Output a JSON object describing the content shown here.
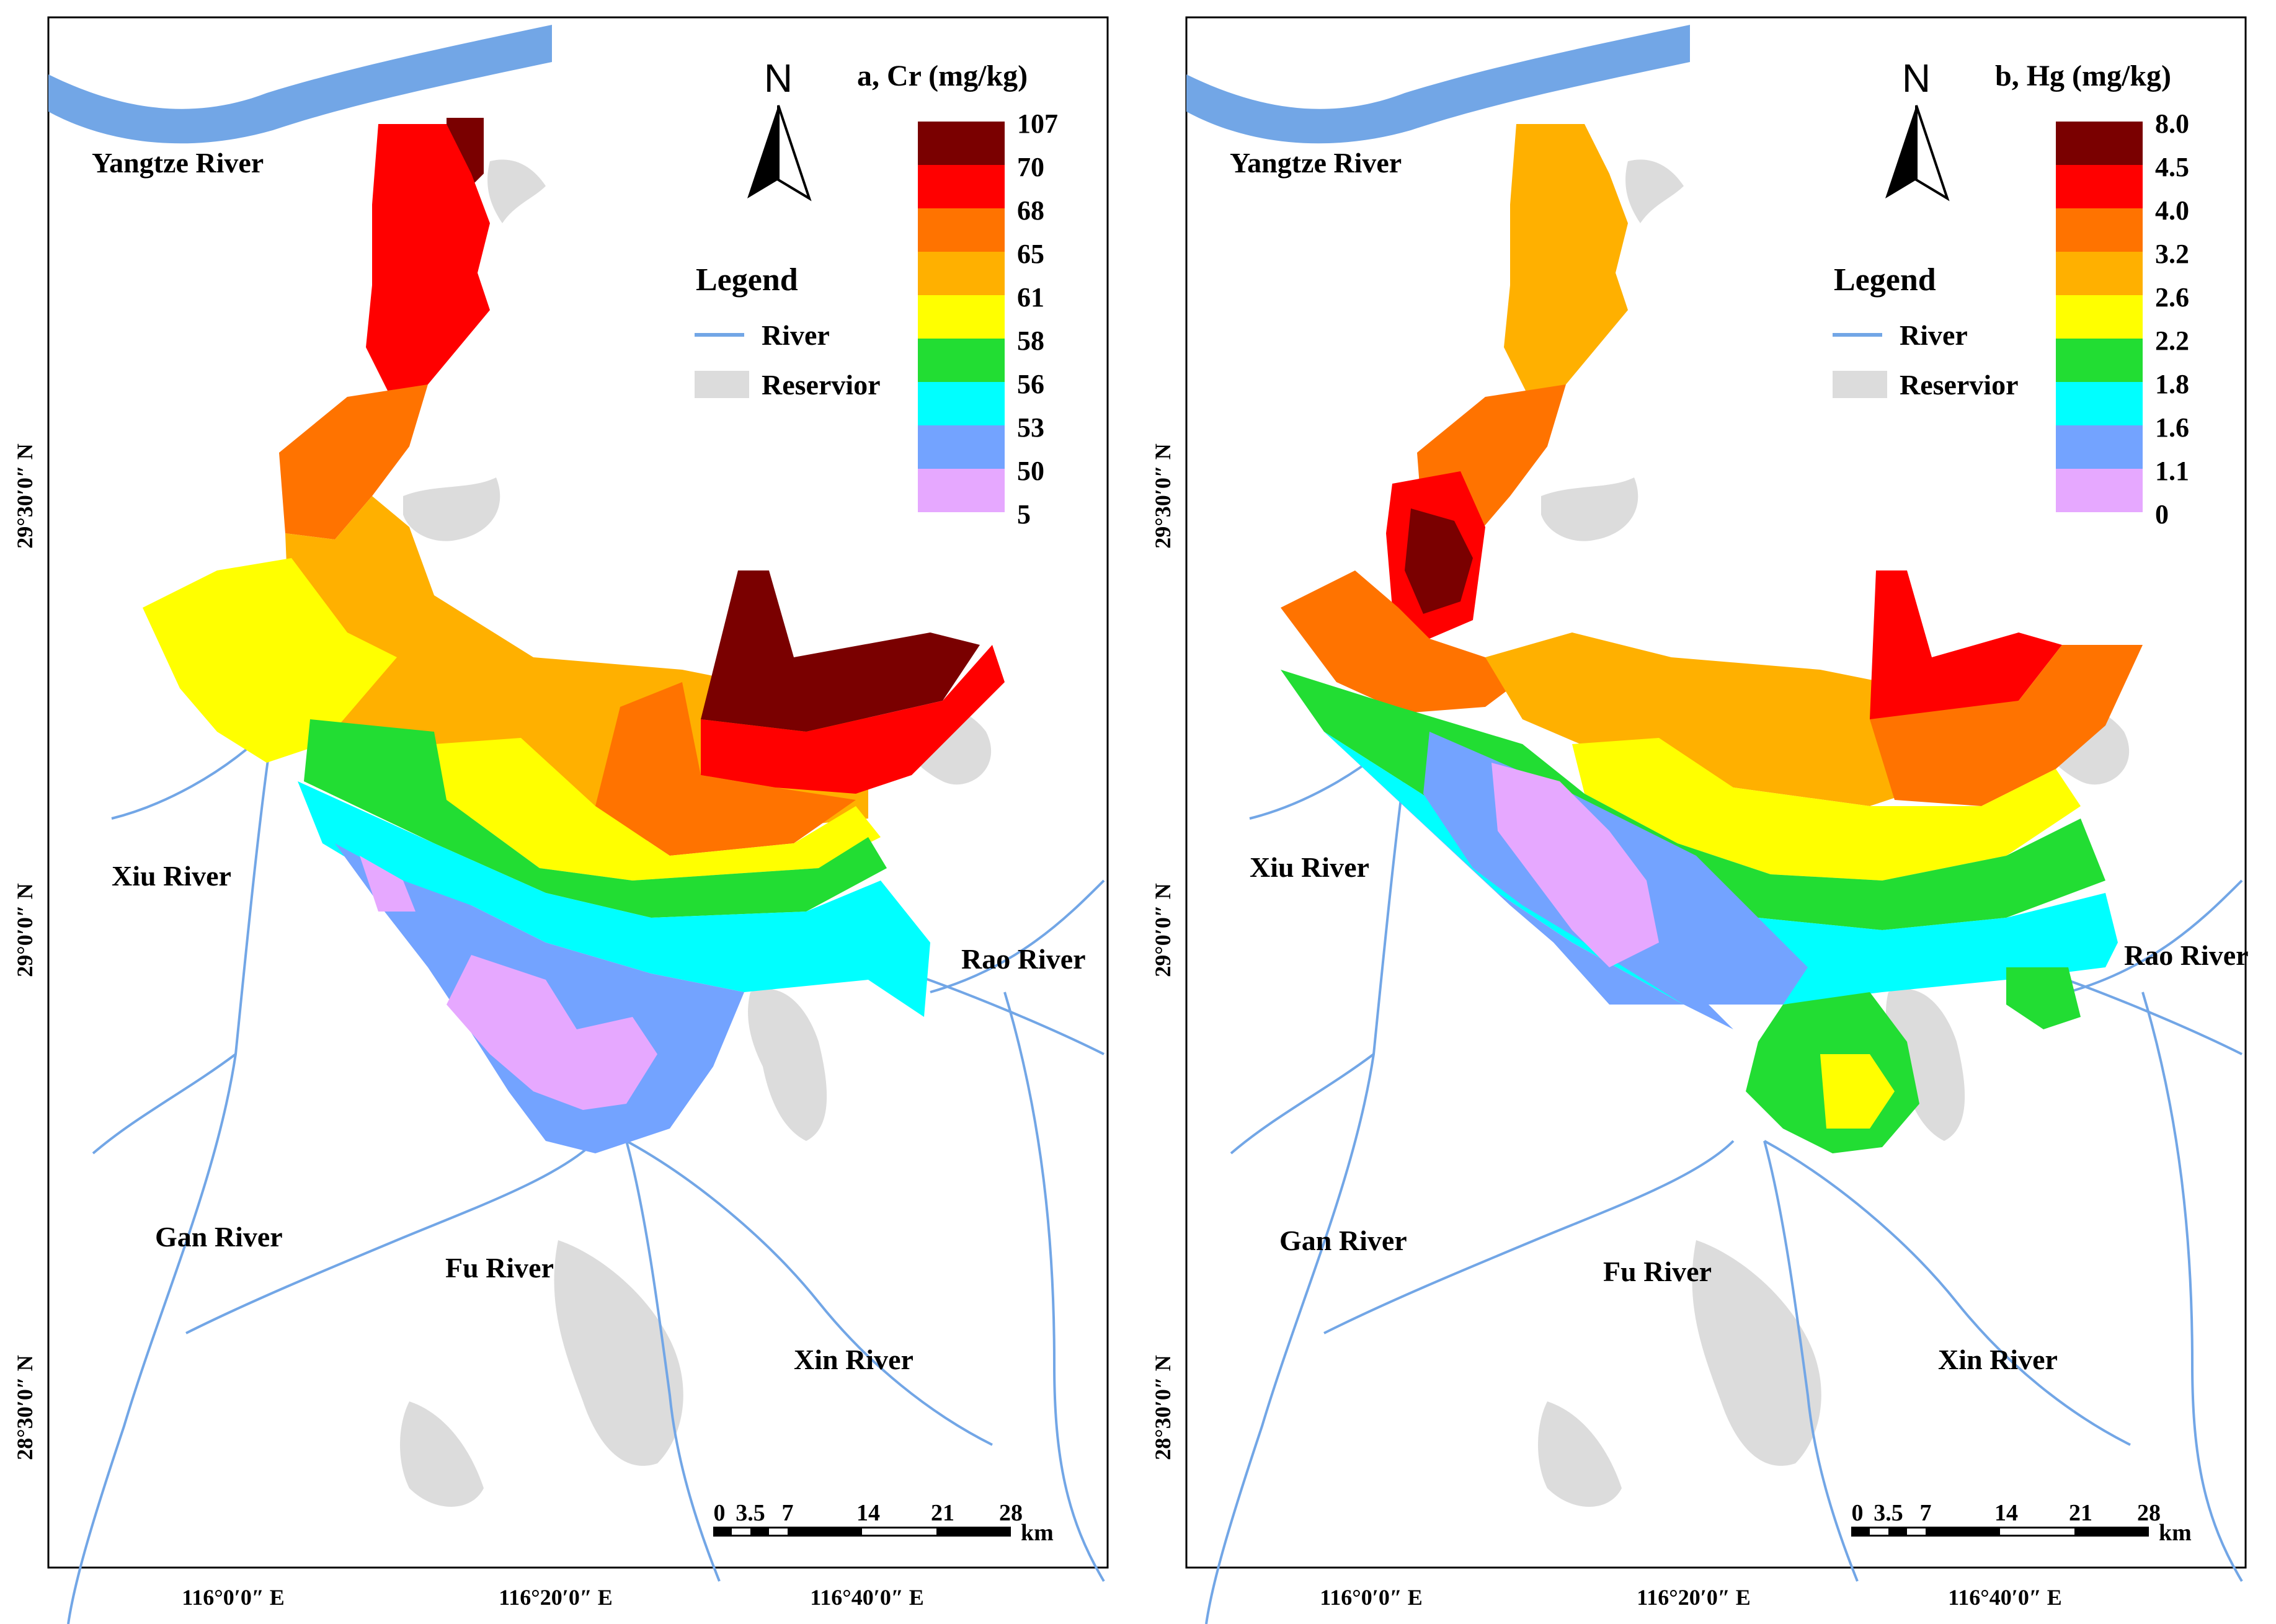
{
  "maps": [
    {
      "id": "cr",
      "title": "a, Cr (mg/kg)",
      "legend_classes": [
        {
          "label": "107",
          "color": "#7a0000"
        },
        {
          "label": "70",
          "color": "#ff0000"
        },
        {
          "label": "68",
          "color": "#ff7300"
        },
        {
          "label": "65",
          "color": "#ffb000"
        },
        {
          "label": "61",
          "color": "#ffff00"
        },
        {
          "label": "58",
          "color": "#22dd33"
        },
        {
          "label": "56",
          "color": "#00ffff"
        },
        {
          "label": "53",
          "color": "#73a3ff"
        },
        {
          "label": "50",
          "color": "#e6a8ff"
        },
        {
          "label": "5",
          "color": null
        }
      ],
      "zones": [
        "#7a0000",
        "#ff0000",
        "#ff7300",
        "#ffb000",
        "#ffff00",
        "#22dd33",
        "#00ffff",
        "#73a3ff",
        "#e6a8ff"
      ]
    },
    {
      "id": "hg",
      "title": "b, Hg (mg/kg)",
      "legend_classes": [
        {
          "label": "8.0",
          "color": "#7a0000"
        },
        {
          "label": "4.5",
          "color": "#ff0000"
        },
        {
          "label": "4.0",
          "color": "#ff7300"
        },
        {
          "label": "3.2",
          "color": "#ffb000"
        },
        {
          "label": "2.6",
          "color": "#ffff00"
        },
        {
          "label": "2.2",
          "color": "#22dd33"
        },
        {
          "label": "1.8",
          "color": "#00ffff"
        },
        {
          "label": "1.6",
          "color": "#73a3ff"
        },
        {
          "label": "1.1",
          "color": "#e6a8ff"
        },
        {
          "label": "0",
          "color": null
        }
      ],
      "zones": [
        "#ffb000",
        "#ff7300",
        "#ff0000",
        "#7a0000",
        "#ffff00",
        "#22dd33",
        "#00ffff",
        "#73a3ff",
        "#e6a8ff"
      ]
    }
  ],
  "legend": {
    "title": "Legend",
    "river": "River",
    "reservoir": "Reservior"
  },
  "north_label": "N",
  "river_labels": {
    "yangtze": "Yangtze River",
    "xiu": "Xiu River",
    "gan": "Gan River",
    "fu": "Fu River",
    "xin": "Xin River",
    "rao": "Rao River"
  },
  "lat_labels": [
    "29°30′0″ N",
    "29°0′0″ N",
    "28°30′0″ N"
  ],
  "lon_labels": [
    "116°0′0″ E",
    "116°20′0″ E",
    "116°40′0″ E"
  ],
  "scale_bar": {
    "ticks": [
      "0",
      "3.5",
      "7",
      "14",
      "21",
      "28"
    ],
    "unit": "km"
  },
  "colors": {
    "river": "#72a6e6",
    "reservoir": "#dcdcdc",
    "frame": "#000000"
  }
}
